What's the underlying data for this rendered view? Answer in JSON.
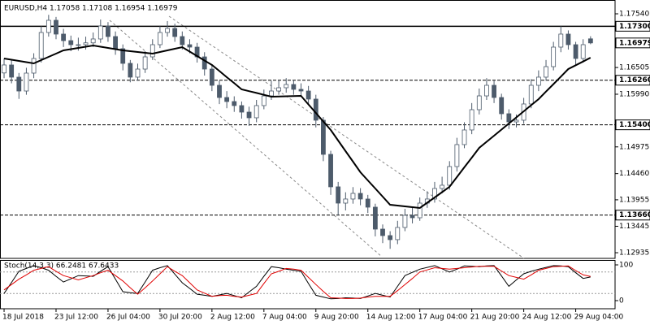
{
  "chart_data": [
    {
      "type": "candlestick",
      "title": "EURUSD,H4  1.17058 1.17108 1.16954 1.16979",
      "categories": [
        "18 Jul 2018",
        null,
        null,
        null,
        null,
        null,
        null,
        "23 Jul 12:00",
        null,
        null,
        null,
        null,
        null,
        null,
        "26 Jul 04:00",
        null,
        null,
        null,
        null,
        null,
        null,
        "30 Jul 20:00",
        null,
        null,
        null,
        null,
        null,
        null,
        "2 Aug 12:00",
        null,
        null,
        null,
        null,
        null,
        null,
        "7 Aug 04:00",
        null,
        null,
        null,
        null,
        null,
        null,
        "9 Aug 20:00",
        null,
        null,
        null,
        null,
        null,
        null,
        "14 Aug 12:00",
        null,
        null,
        null,
        null,
        null,
        null,
        "17 Aug 04:00",
        null,
        null,
        null,
        null,
        null,
        null,
        "21 Aug 20:00",
        null,
        null,
        null,
        null,
        null,
        null,
        "24 Aug 12:00",
        null,
        null,
        null,
        null,
        null,
        null,
        "29 Aug 04:00",
        null,
        null
      ],
      "open": [
        1.164,
        1.16554,
        1.16319,
        1.16052,
        1.16397,
        1.16679,
        1.1718,
        1.17415,
        1.17149,
        1.17023,
        1.16945,
        1.16945,
        1.1698,
        1.17055,
        1.17305,
        1.17102,
        1.16867,
        1.16585,
        1.16319,
        1.16475,
        1.1671,
        1.16945,
        1.1718,
        1.17258,
        1.17102,
        1.16945,
        1.16898,
        1.1671,
        1.16475,
        1.16162,
        1.15927,
        1.15849,
        1.15771,
        1.15645,
        1.15536,
        1.15771,
        1.15958,
        1.16052,
        1.16115,
        1.16178,
        1.16084,
        1.16052,
        1.15896,
        1.15489,
        1.14831,
        1.14205,
        1.13891,
        1.1397,
        1.14079,
        1.1397,
        1.13813,
        1.1339,
        1.13265,
        1.13187,
        1.13422,
        1.13656,
        1.13609,
        1.13891,
        1.1397,
        1.14173,
        1.14236,
        1.14596,
        1.15019,
        1.15301,
        1.15692,
        1.15958,
        1.16162,
        1.15927,
        1.15614,
        1.15457,
        1.15489,
        1.15802,
        1.16162,
        1.16319,
        1.16522,
        1.16898,
        1.17149,
        1.16945,
        1.16679,
        1.17058
      ],
      "high": [
        1.1668,
        1.1665,
        1.164,
        1.165,
        1.1678,
        1.173,
        1.1752,
        1.1748,
        1.1725,
        1.1712,
        1.1708,
        1.171,
        1.1718,
        1.1743,
        1.1738,
        1.172,
        1.1695,
        1.1665,
        1.1658,
        1.1682,
        1.1705,
        1.173,
        1.174,
        1.1735,
        1.172,
        1.1705,
        1.1698,
        1.168,
        1.1655,
        1.1625,
        1.1605,
        1.1595,
        1.1585,
        1.1575,
        1.1588,
        1.1608,
        1.1625,
        1.1626,
        1.163,
        1.1626,
        1.162,
        1.1615,
        1.1598,
        1.1555,
        1.149,
        1.143,
        1.141,
        1.142,
        1.1418,
        1.1405,
        1.1388,
        1.1348,
        1.1335,
        1.1355,
        1.1378,
        1.138,
        1.14,
        1.1412,
        1.143,
        1.144,
        1.147,
        1.1515,
        1.1545,
        1.1582,
        1.161,
        1.163,
        1.1625,
        1.16,
        1.157,
        1.156,
        1.1592,
        1.1628,
        1.1645,
        1.1665,
        1.17,
        1.173,
        1.1722,
        1.17,
        1.1705,
        1.17108
      ],
      "low": [
        1.163,
        1.162,
        1.159,
        1.1598,
        1.163,
        1.166,
        1.171,
        1.1705,
        1.169,
        1.1682,
        1.1683,
        1.1685,
        1.169,
        1.1698,
        1.17,
        1.1675,
        1.1645,
        1.1622,
        1.1625,
        1.164,
        1.1665,
        1.1688,
        1.171,
        1.17,
        1.1685,
        1.1678,
        1.166,
        1.1635,
        1.1605,
        1.158,
        1.1572,
        1.1565,
        1.1552,
        1.1538,
        1.1545,
        1.157,
        1.1588,
        1.1598,
        1.1602,
        1.1598,
        1.1595,
        1.1578,
        1.1535,
        1.147,
        1.1405,
        1.1366,
        1.1375,
        1.1388,
        1.1385,
        1.137,
        1.1325,
        1.1312,
        1.1301,
        1.131,
        1.1335,
        1.135,
        1.1355,
        1.138,
        1.139,
        1.1408,
        1.1415,
        1.145,
        1.1495,
        1.1522,
        1.156,
        1.1588,
        1.1582,
        1.155,
        1.1532,
        1.1535,
        1.1542,
        1.1572,
        1.1605,
        1.1625,
        1.1645,
        1.168,
        1.1685,
        1.1655,
        1.166,
        1.16954
      ],
      "close": [
        1.16554,
        1.16319,
        1.16052,
        1.16397,
        1.16679,
        1.1718,
        1.17415,
        1.17149,
        1.17023,
        1.16945,
        1.16945,
        1.1698,
        1.17055,
        1.17305,
        1.17102,
        1.16867,
        1.16585,
        1.16319,
        1.16475,
        1.1671,
        1.16945,
        1.1718,
        1.17258,
        1.17102,
        1.16945,
        1.16898,
        1.1671,
        1.16475,
        1.16162,
        1.15927,
        1.15849,
        1.15771,
        1.15645,
        1.15536,
        1.15771,
        1.15958,
        1.16052,
        1.16115,
        1.16178,
        1.16084,
        1.16052,
        1.15896,
        1.15489,
        1.14831,
        1.14205,
        1.13891,
        1.1397,
        1.14079,
        1.1397,
        1.13813,
        1.1339,
        1.13265,
        1.13187,
        1.13422,
        1.13656,
        1.13609,
        1.13891,
        1.1397,
        1.14173,
        1.14236,
        1.14596,
        1.15019,
        1.15301,
        1.15692,
        1.15958,
        1.16162,
        1.15927,
        1.15614,
        1.15457,
        1.15489,
        1.15802,
        1.16162,
        1.16319,
        1.16522,
        1.16898,
        1.17149,
        1.16945,
        1.16679,
        1.16945,
        1.16979
      ],
      "up_color": "#ffffff",
      "down_color": "#4d5b6b",
      "wick_color": "#4d5b6b",
      "overlay": {
        "color": "#000000",
        "values": [
          1.16679,
          1.16655,
          1.16632,
          1.16608,
          1.16585,
          1.16648,
          1.1671,
          1.16773,
          1.16835,
          1.16859,
          1.16882,
          1.16906,
          1.16929,
          1.16906,
          1.16882,
          1.16859,
          1.16835,
          1.1682,
          1.16804,
          1.16789,
          1.16773,
          1.16804,
          1.16836,
          1.16867,
          1.16898,
          1.16812,
          1.16726,
          1.1664,
          1.16554,
          1.16437,
          1.16319,
          1.16202,
          1.16084,
          1.16049,
          1.16014,
          1.15978,
          1.15943,
          1.15947,
          1.15951,
          1.15954,
          1.15958,
          1.15794,
          1.1563,
          1.15465,
          1.15301,
          1.15097,
          1.14894,
          1.1469,
          1.14486,
          1.1433,
          1.14173,
          1.14017,
          1.1386,
          1.13844,
          1.13829,
          1.13813,
          1.13797,
          1.13899,
          1.14001,
          1.14103,
          1.14205,
          1.14393,
          1.14581,
          1.14768,
          1.14956,
          1.15074,
          1.15191,
          1.15309,
          1.15426,
          1.15544,
          1.15661,
          1.15779,
          1.15896,
          1.16041,
          1.16186,
          1.1633,
          1.16475,
          1.16548,
          1.16621,
          1.16694
        ]
      },
      "xlim": [
        -0.55,
        82.3
      ],
      "ylim": [
        1.12826,
        1.17728
      ],
      "yticks": [
        {
          "value": 1.1754,
          "label": "1.17540"
        },
        {
          "value": 1.16505,
          "label": "1.16505"
        },
        {
          "value": 1.1599,
          "label": "1.15990"
        },
        {
          "value": 1.14975,
          "label": "1.14975"
        },
        {
          "value": 1.1446,
          "label": "1.14460"
        },
        {
          "value": 1.13955,
          "label": "1.13955"
        },
        {
          "value": 1.13445,
          "label": "1.13445"
        },
        {
          "value": 1.12935,
          "label": "1.12935"
        }
      ],
      "levels": [
        {
          "value": 1.173,
          "label": "1.17300",
          "style": "solid"
        },
        {
          "value": 1.1626,
          "label": "1.16260",
          "style": "dashed"
        },
        {
          "value": 1.154,
          "label": "1.15400",
          "style": "dashed"
        },
        {
          "value": 1.1366,
          "label": "1.13660",
          "style": "dashed"
        }
      ],
      "price_label": {
        "value": 1.16979,
        "label": "1.16979"
      }
    },
    {
      "type": "line",
      "title": "Stoch(14,3,3) 66.2481 67.6433",
      "series": [
        {
          "color": "#000000",
          "values": [
            20,
            51,
            82,
            90,
            98,
            92,
            85,
            68,
            52,
            61,
            70,
            69,
            68,
            82,
            95,
            60,
            25,
            22,
            20,
            52,
            85,
            92,
            98,
            74,
            50,
            34,
            18,
            15,
            12,
            16,
            20,
            14,
            8,
            24,
            40,
            68,
            95,
            92,
            88,
            85,
            82,
            48,
            15,
            10,
            5,
            6,
            8,
            7,
            6,
            13,
            20,
            15,
            10,
            40,
            70,
            79,
            88,
            93,
            98,
            89,
            80,
            88,
            97,
            96,
            95,
            97,
            98,
            69,
            40,
            58,
            75,
            82,
            88,
            93,
            98,
            97,
            95,
            78,
            62,
            66.2481
          ]
        },
        {
          "color": "#e00000",
          "values": [
            30,
            45,
            60,
            72,
            85,
            90,
            95,
            82,
            70,
            64,
            58,
            64,
            70,
            78,
            85,
            70,
            55,
            36,
            18,
            36,
            55,
            75,
            95,
            82,
            70,
            50,
            30,
            21,
            12,
            14,
            15,
            12,
            10,
            15,
            20,
            48,
            75,
            82,
            90,
            88,
            85,
            65,
            45,
            26,
            8,
            7,
            6,
            6,
            7,
            10,
            12,
            12,
            12,
            28,
            45,
            62,
            80,
            86,
            92,
            90,
            88,
            90,
            92,
            94,
            96,
            96,
            96,
            83,
            70,
            65,
            60,
            72,
            85,
            90,
            95,
            96,
            97,
            84,
            72,
            67.6433
          ]
        }
      ],
      "xlim": [
        -0.55,
        82.3
      ],
      "ylim": [
        0,
        100
      ],
      "yticks": [
        0,
        100
      ],
      "levels": [
        20,
        80
      ]
    }
  ]
}
